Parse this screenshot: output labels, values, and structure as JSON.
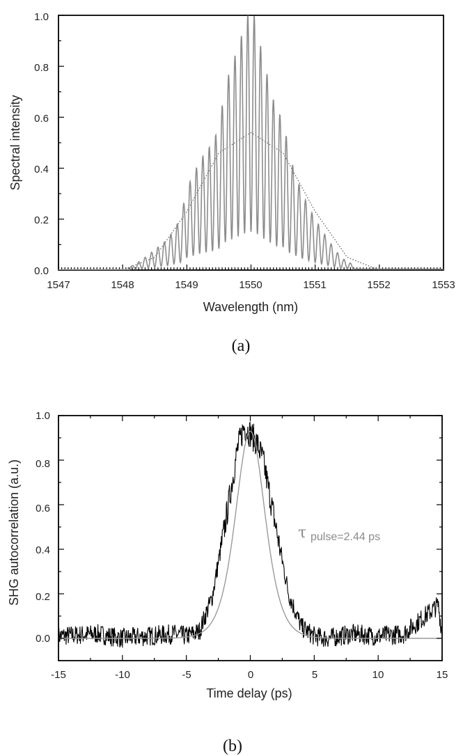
{
  "chart_data": [
    {
      "id": "a",
      "type": "line",
      "caption": "(a)",
      "xlabel": "Wavelength (nm)",
      "ylabel": "Spectral intensity",
      "xlim": [
        1547,
        1553
      ],
      "ylim": [
        0,
        1.0
      ],
      "xticks": [
        "1547",
        "1548",
        "1549",
        "1550",
        "1551",
        "1552",
        "1553"
      ],
      "yticks": [
        "0.0",
        "0.2",
        "0.4",
        "0.6",
        "0.8",
        "1.0"
      ],
      "grid": false,
      "series": [
        {
          "style": "solid",
          "color": "#8c8c8c",
          "x": [
            1548.1,
            1548.3,
            1548.5,
            1548.7,
            1548.9,
            1549.0,
            1549.2,
            1549.4,
            1549.5,
            1549.6,
            1549.8,
            1549.95,
            1550.05,
            1550.2,
            1550.4,
            1550.5,
            1550.6,
            1550.8,
            1551.0,
            1551.2,
            1551.4,
            1551.6
          ],
          "y": [
            0.01,
            0.04,
            0.08,
            0.12,
            0.2,
            0.32,
            0.43,
            0.5,
            0.56,
            0.73,
            0.88,
            1.0,
            1.0,
            0.82,
            0.62,
            0.6,
            0.45,
            0.3,
            0.2,
            0.12,
            0.05,
            0.02
          ]
        },
        {
          "style": "dotted",
          "color": "#555555",
          "x": [
            1548.0,
            1548.5,
            1549.0,
            1549.5,
            1550.0,
            1550.5,
            1551.0,
            1551.5,
            1552.0
          ],
          "y": [
            0.0,
            0.05,
            0.23,
            0.46,
            0.54,
            0.46,
            0.23,
            0.05,
            0.0
          ]
        }
      ]
    },
    {
      "id": "b",
      "type": "line",
      "caption": "(b)",
      "xlabel": "Time delay (ps)",
      "ylabel": "SHG autocorrelation (a.u.)",
      "xlim": [
        -15,
        15
      ],
      "ylim": [
        -0.1,
        1.0
      ],
      "xticks": [
        "-15",
        "-10",
        "-5",
        "0",
        "5",
        "10",
        "15"
      ],
      "yticks": [
        "0.0",
        "0.2",
        "0.4",
        "0.6",
        "0.8",
        "1.0"
      ],
      "grid": false,
      "annotation_symbol": "τ",
      "annotation_text": "pulse=2.44 ps",
      "series": [
        {
          "style": "noisy",
          "color": "#000000",
          "x": [
            -15,
            -12,
            -10,
            -8,
            -6,
            -5,
            -4,
            -3,
            -2,
            -1,
            -0.5,
            0,
            0.5,
            1,
            2,
            3,
            4,
            5,
            6,
            8,
            10,
            12,
            14.7,
            15
          ],
          "y": [
            0.01,
            0.02,
            0.0,
            0.01,
            0.02,
            0.01,
            0.03,
            0.18,
            0.5,
            0.85,
            0.95,
            0.92,
            0.88,
            0.8,
            0.5,
            0.2,
            0.05,
            0.01,
            0.0,
            0.02,
            0.01,
            0.02,
            0.15,
            0.02
          ]
        },
        {
          "style": "smooth-fit",
          "color": "#9a9a9a",
          "x": [
            -15,
            -10,
            -6,
            -4,
            -3,
            -2,
            -1,
            0,
            1,
            2,
            3,
            4,
            6,
            10,
            15
          ],
          "y": [
            0.0,
            0.0,
            0.0,
            0.05,
            0.18,
            0.48,
            0.8,
            0.93,
            0.8,
            0.48,
            0.18,
            0.05,
            0.0,
            0.0,
            0.0
          ]
        }
      ]
    }
  ]
}
